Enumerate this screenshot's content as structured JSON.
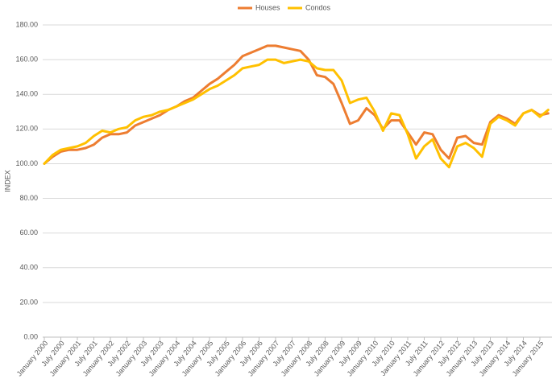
{
  "chart_data": {
    "type": "line",
    "y_label": "INDEX",
    "categories": [
      "January 2000",
      null,
      "July 2000",
      null,
      "January 2001",
      null,
      "July 2001",
      null,
      "January 2002",
      null,
      "July 2002",
      null,
      "January 2003",
      null,
      "July 2003",
      null,
      "January 2004",
      null,
      "July 2004",
      null,
      "January 2005",
      null,
      "July 2005",
      null,
      "January 2006",
      null,
      "July 2006",
      null,
      "January 2007",
      null,
      "July 2007",
      null,
      "January 2008",
      null,
      "July 2008",
      null,
      "January 2009",
      null,
      "July 2009",
      null,
      "January 2010",
      null,
      "July 2010",
      null,
      "January 2011",
      null,
      "July 2011",
      null,
      "January 2012",
      null,
      "July 2012",
      null,
      "January 2013",
      null,
      "July 2013",
      null,
      "January 2014",
      null,
      "July 2014",
      null,
      "January 2015",
      null
    ],
    "series": [
      {
        "name": "Houses",
        "color": "#ed7d31",
        "values": [
          100,
          104,
          107,
          108,
          108,
          109,
          111,
          115,
          117,
          117,
          118,
          122,
          124,
          126,
          128,
          131,
          133,
          136,
          138,
          142,
          146,
          149,
          153,
          157,
          162,
          164,
          166,
          168,
          168,
          167,
          166,
          165,
          160,
          151,
          150,
          146,
          135,
          123,
          125,
          132,
          128,
          120,
          125,
          125,
          118,
          111,
          118,
          117,
          108,
          103,
          115,
          116,
          112,
          111,
          124,
          128,
          126,
          123,
          129,
          131,
          128,
          129
        ]
      },
      {
        "name": "Condos",
        "color": "#ffc000",
        "values": [
          100,
          105,
          108,
          109,
          110,
          112,
          116,
          119,
          118,
          120,
          121,
          125,
          127,
          128,
          130,
          131,
          133,
          135,
          137,
          140,
          143,
          145,
          148,
          151,
          155,
          156,
          157,
          160,
          160,
          158,
          159,
          160,
          159,
          155,
          154,
          154,
          148,
          135,
          137,
          138,
          130,
          119,
          129,
          128,
          117,
          103,
          110,
          114,
          103,
          98,
          110,
          112,
          109,
          104,
          123,
          127,
          125,
          122,
          129,
          131,
          127,
          131
        ]
      }
    ],
    "ylim": [
      0,
      180
    ],
    "yticks": [
      {
        "value": 0,
        "label": "0.00"
      },
      {
        "value": 20,
        "label": "20.00"
      },
      {
        "value": 40,
        "label": "40.00"
      },
      {
        "value": 60,
        "label": "60.00"
      },
      {
        "value": 80,
        "label": "80.00"
      },
      {
        "value": 100,
        "label": "100.00"
      },
      {
        "value": 120,
        "label": "120.00"
      },
      {
        "value": 140,
        "label": "140.00"
      },
      {
        "value": 160,
        "label": "160.00"
      },
      {
        "value": 180,
        "label": "180.00"
      }
    ],
    "grid": true,
    "legend": "top"
  }
}
